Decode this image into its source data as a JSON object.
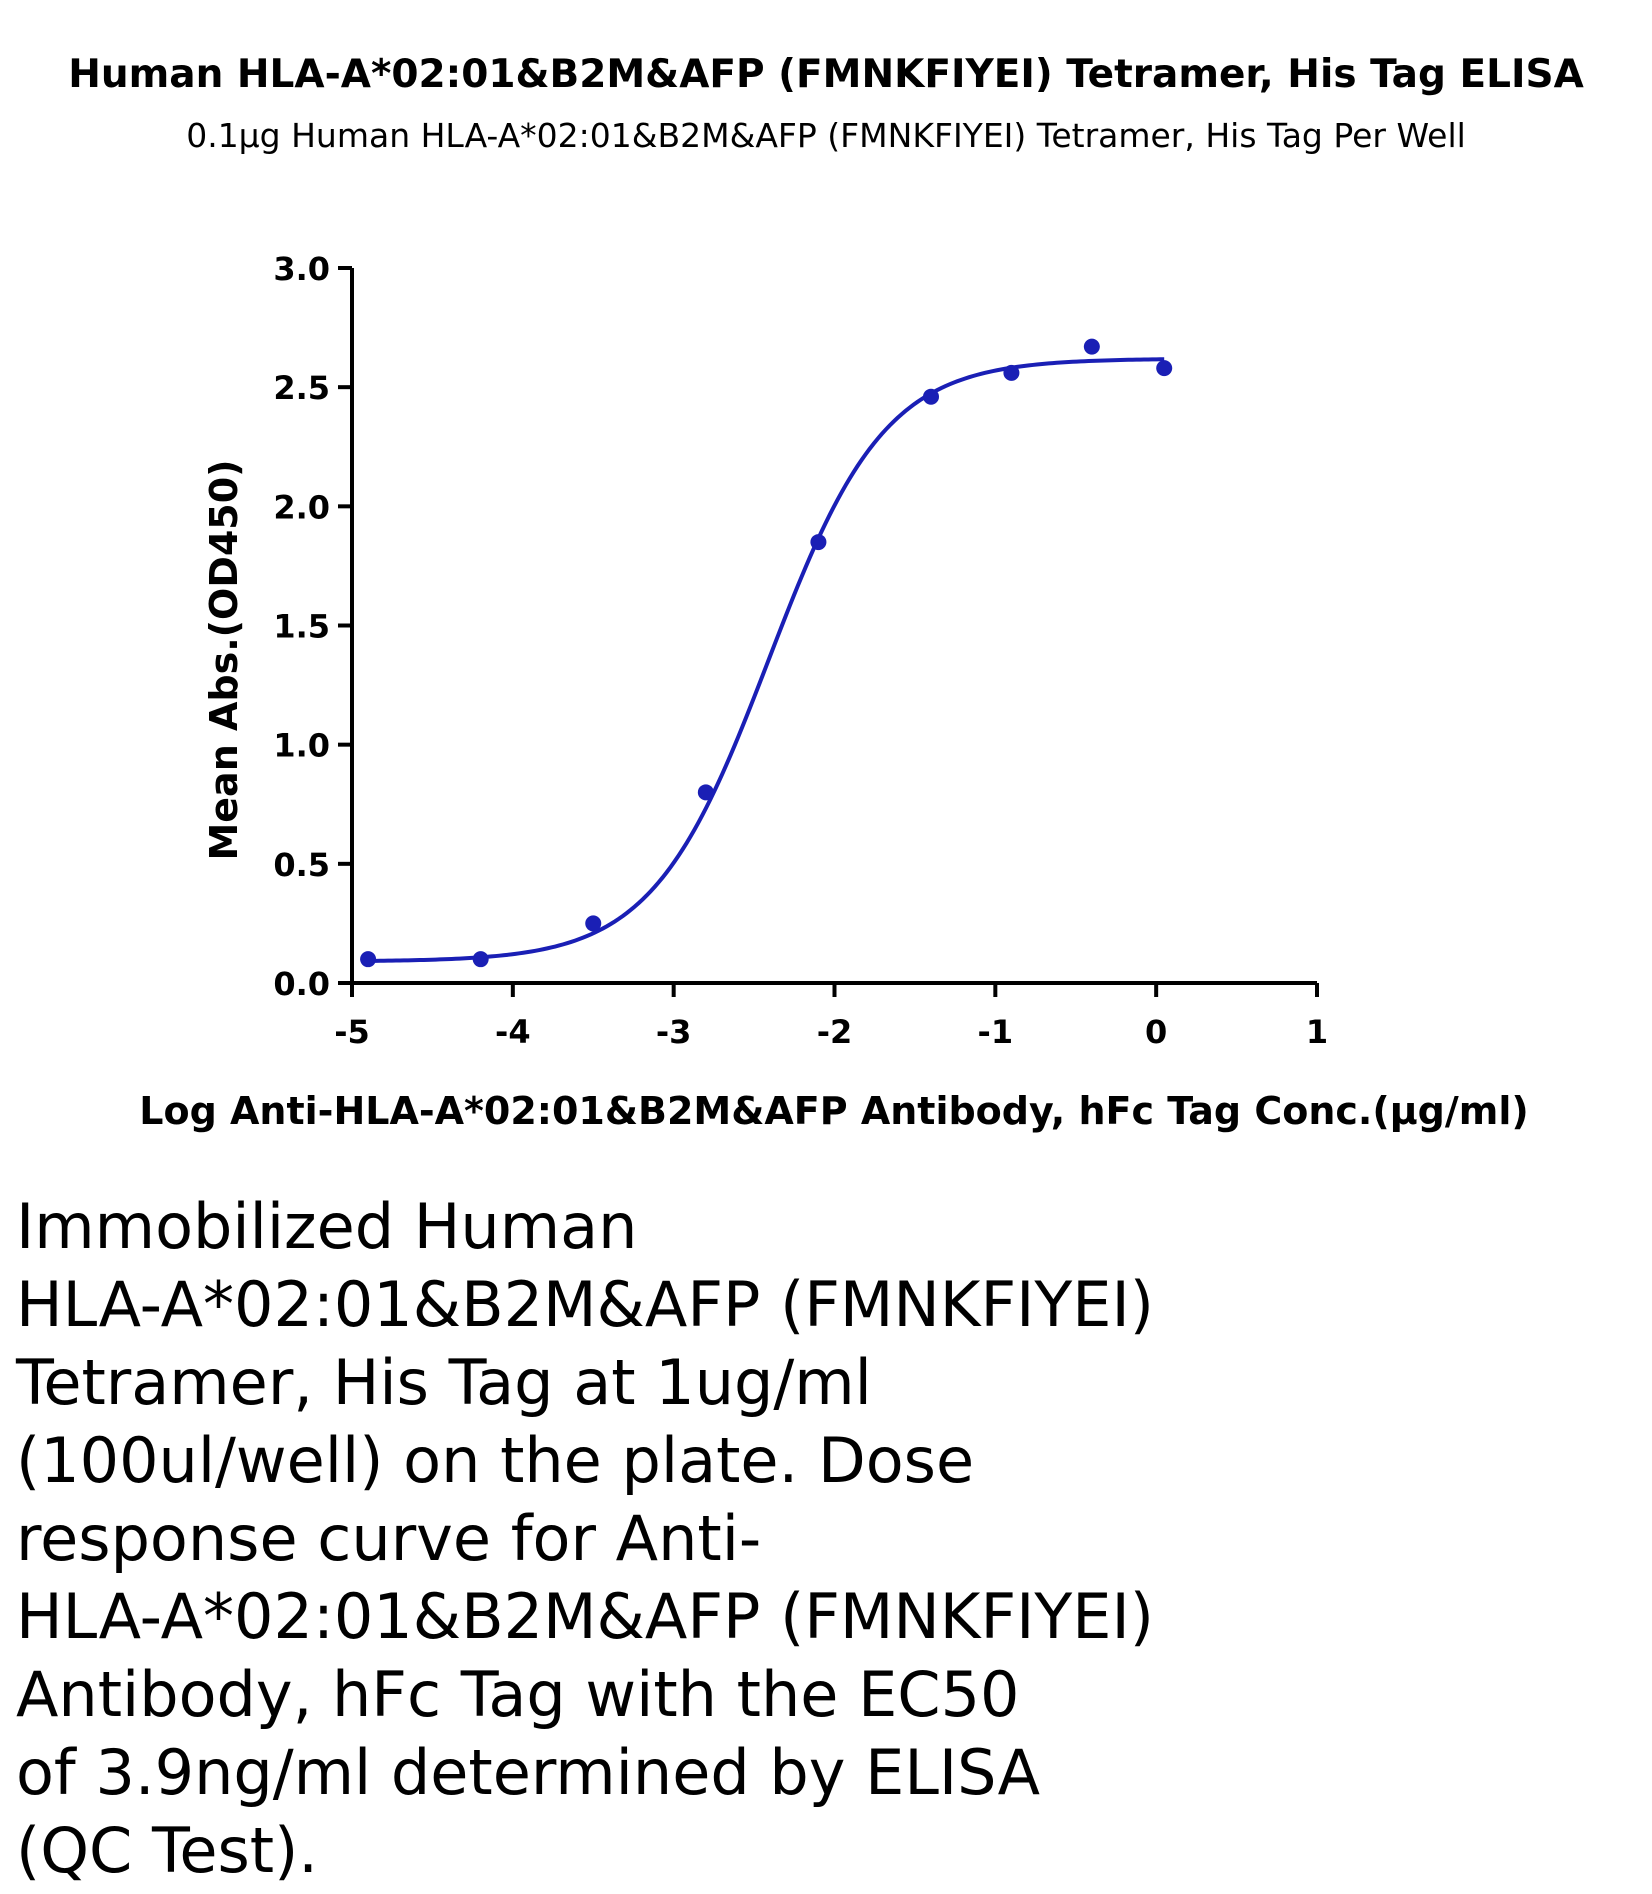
{
  "chart_data": {
    "type": "scatter",
    "title": "Human HLA-A*02:01&B2M&AFP (FMNKFIYEI) Tetramer, His Tag ELISA",
    "subtitle": "0.1μg Human HLA-A*02:01&B2M&AFP (FMNKFIYEI) Tetramer, His Tag Per Well",
    "xlabel": "Log Anti-HLA-A*02:01&B2M&AFP Antibody, hFc Tag Conc.(μg/ml)",
    "ylabel": "Mean Abs.(OD450)",
    "xlim": [
      -5,
      1
    ],
    "ylim": [
      0,
      3
    ],
    "x_ticks": [
      -5,
      -4,
      -3,
      -2,
      -1,
      0,
      1
    ],
    "x_tick_labels": [
      "-5",
      "-4",
      "-3",
      "-2",
      "-1",
      "0",
      "1"
    ],
    "y_ticks": [
      0,
      0.5,
      1,
      1.5,
      2,
      2.5,
      3
    ],
    "y_tick_labels": [
      "0.0",
      "0.5",
      "1.0",
      "1.5",
      "2.0",
      "2.5",
      "3.0"
    ],
    "grid": false,
    "series": [
      {
        "color": "#1a1fb5",
        "x": [
          -4.9,
          -4.2,
          -3.5,
          -2.8,
          -2.1,
          -1.4,
          -0.9,
          -0.4,
          0.05
        ],
        "y": [
          0.1,
          0.1,
          0.25,
          0.8,
          1.85,
          2.46,
          2.56,
          2.67,
          2.58
        ]
      }
    ],
    "fit_curve": {
      "type": "4PL sigmoid",
      "color": "#1a1fb5",
      "x_range": [
        -4.9,
        0.05
      ],
      "bottom": 0.09,
      "top": 2.62,
      "log_ec50": -2.41,
      "hill_slope": 1.2
    }
  },
  "caption": {
    "lines": [
      "Immobilized Human",
      "HLA-A*02:01&B2M&AFP (FMNKFIYEI)",
      "Tetramer, His Tag at 1ug/ml",
      "(100ul/well) on the plate. Dose",
      "response curve for Anti-",
      "HLA-A*02:01&B2M&AFP (FMNKFIYEI)",
      "Antibody, hFc Tag with the EC50",
      "of 3.9ng/ml determined by ELISA",
      "(QC Test)."
    ]
  }
}
